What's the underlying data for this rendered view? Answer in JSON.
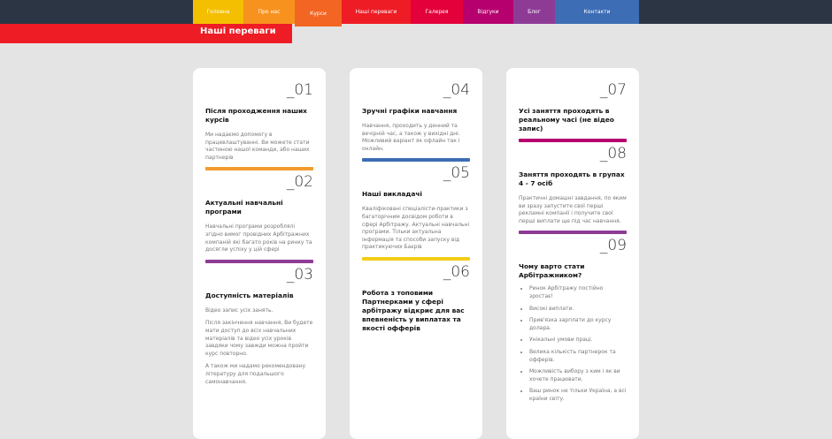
{
  "nav": [
    {
      "label": "Головна",
      "color": "#f3bf00"
    },
    {
      "label": "Про нас",
      "color": "#f7921e"
    },
    {
      "label": "Курси",
      "color": "#f26522",
      "active": true
    },
    {
      "label": "Наші переваги",
      "color": "#ee1c25"
    },
    {
      "label": "Галерея",
      "color": "#e4003a"
    },
    {
      "label": "Відгуки",
      "color": "#b5006e"
    },
    {
      "label": "Блог",
      "color": "#8e3b96"
    },
    {
      "label": "Контакти",
      "color": "#3d6db4"
    }
  ],
  "page_title": "Наші переваги",
  "columns": [
    [
      {
        "num": "_01",
        "title": "Після проходження наших курсів",
        "paras": [
          "Ми надаємо допомогу в працевлаштуванні. Ви можете стати частиною нашої команди, або наших партнерів"
        ],
        "bar": "#f29a2e"
      },
      {
        "num": "_02",
        "title": "Актуальні навчальні програми",
        "paras": [
          "Навчальні програми розроблялі згідно вимог провідних Арбітражних компаній які багато років на ринку та досягли успіху у цій сфері"
        ],
        "bar": "#8e3b96"
      },
      {
        "num": "_03",
        "title": "Доступність матеріалів",
        "paras": [
          "Відео запис усіх занять.",
          "Після закінчення навчання, Ви будете мати доступ до всіх навчальних матеріалів та відео усіх уроків завдяки чому завжди можна пройти курс повторно.",
          "А також ми надамо рекомендовану літературу для подальшого самонавчання."
        ]
      }
    ],
    [
      {
        "num": "_04",
        "title": "Зручні графіки навчання",
        "paras": [
          "Навчання, проходить у денний та вечірній час, а також у вихідні дні. Можливий варіант як офлайн так і онлайн."
        ],
        "bar": "#3d6db4"
      },
      {
        "num": "_05",
        "title": "Наші викладачі",
        "paras": [
          "Кваліфіковані спеціалісти-практики з багаторічним досвідом роботи в сфері Арбітражу. Актуальні навчальні програми. Тільки актуальна інформація та способи запуску від практикуючих Баєрів"
        ],
        "bar": "#f3cc17"
      },
      {
        "num": "_06",
        "title": "Робота з топовими Партнерками у сфері арбітражу відкриє для вас впевненість у виплатах та якості офферів",
        "paras": []
      }
    ],
    [
      {
        "num": "_07",
        "title": "Усі заняття проходять в реальному часі (не відео запис)",
        "paras": [],
        "bar": "#b5006e"
      },
      {
        "num": "_08",
        "title": "Заняття проходять в групах 4 - 7 осіб",
        "paras": [
          "Практичні домашні завдання, по яким ви зразу запустите свої перші рекламні компанії і получите свої перші виплати ще під час навчання."
        ],
        "bar": "#8e3b96"
      },
      {
        "num": "_09",
        "title": "Чому варто стати Арбітражником?",
        "paras": [],
        "list": [
          "Ринок Арбітражу постійно зростає!",
          "Високі виплати.",
          "Прив'язка зарплати до курсу долара.",
          "Унікальні умови праці.",
          "Велика кількість партнерок та офферів.",
          "Можливість вибору з ким і як ви хочете працювати.",
          "Ваш ринок не тільки Україна, а всі країни світу."
        ]
      }
    ]
  ]
}
